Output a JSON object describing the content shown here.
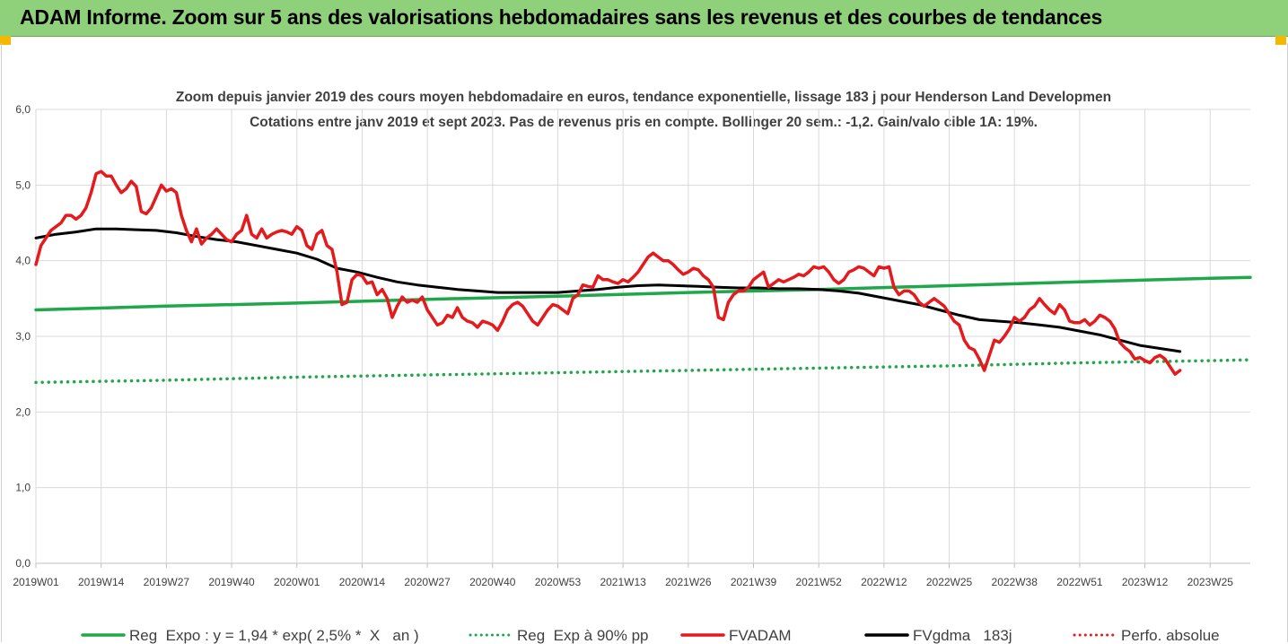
{
  "header": {
    "title": "ADAM Informe. Zoom sur 5 ans des valorisations hebdomadaires sans les revenus et des courbes de tendances"
  },
  "colors": {
    "header_bg": "#8fd07a",
    "green": "#1fa84a",
    "red": "#e41a1c",
    "black": "#000000",
    "title_text": "#404040"
  },
  "chart_data": {
    "type": "line",
    "title": "Zoom depuis janvier 2019 des cours moyen hebdomadaire en euros, tendance exponentielle, lissage 183 j pour Henderson Land Developmen",
    "subtitle": "Cotations entre janv 2019 et sept 2023. Pas de revenus pris en compte. Bollinger 20 sem.: -1,2. Gain/valo cible 1A: 19%.",
    "ylim": [
      0,
      6
    ],
    "y_ticks": [
      "0,0",
      "1,0",
      "2,0",
      "3,0",
      "4,0",
      "5,0",
      "6,0"
    ],
    "x_ticks": [
      "2019W01",
      "2019W14",
      "2019W27",
      "2019W40",
      "2020W01",
      "2020W14",
      "2020W27",
      "2020W40",
      "2020W53",
      "2021W13",
      "2021W26",
      "2021W39",
      "2021W52",
      "2022W12",
      "2022W25",
      "2022W38",
      "2022W51",
      "2023W12",
      "2023W25"
    ],
    "grid": true,
    "legend_position": "bottom",
    "series": [
      {
        "name": "Reg  Expo : y = 1,94 * exp( 2,5% *  X   an )",
        "color": "#1fa84a",
        "style": "solid",
        "values": [
          [
            0,
            3.35
          ],
          [
            26,
            3.4
          ],
          [
            52,
            3.44
          ],
          [
            78,
            3.49
          ],
          [
            104,
            3.53
          ],
          [
            130,
            3.58
          ],
          [
            156,
            3.62
          ],
          [
            182,
            3.67
          ],
          [
            208,
            3.72
          ],
          [
            235,
            3.77
          ],
          [
            242,
            3.78
          ]
        ]
      },
      {
        "name": "Reg  Exp à 90% pp",
        "color": "#1fa84a",
        "style": "dotted",
        "values": [
          [
            0,
            2.39
          ],
          [
            26,
            2.42
          ],
          [
            52,
            2.46
          ],
          [
            78,
            2.49
          ],
          [
            104,
            2.52
          ],
          [
            130,
            2.55
          ],
          [
            156,
            2.58
          ],
          [
            182,
            2.61
          ],
          [
            208,
            2.65
          ],
          [
            235,
            2.68
          ],
          [
            242,
            2.69
          ]
        ]
      },
      {
        "name": "FVADAM",
        "color": "#e41a1c",
        "style": "solid",
        "values": [
          [
            0,
            3.95
          ],
          [
            1,
            4.2
          ],
          [
            2,
            4.3
          ],
          [
            3,
            4.4
          ],
          [
            4,
            4.45
          ],
          [
            5,
            4.5
          ],
          [
            6,
            4.6
          ],
          [
            7,
            4.6
          ],
          [
            8,
            4.55
          ],
          [
            9,
            4.6
          ],
          [
            10,
            4.7
          ],
          [
            11,
            4.9
          ],
          [
            12,
            5.15
          ],
          [
            13,
            5.18
          ],
          [
            14,
            5.12
          ],
          [
            15,
            5.12
          ],
          [
            16,
            5.0
          ],
          [
            17,
            4.9
          ],
          [
            18,
            4.95
          ],
          [
            19,
            5.05
          ],
          [
            20,
            4.98
          ],
          [
            21,
            4.65
          ],
          [
            22,
            4.62
          ],
          [
            23,
            4.7
          ],
          [
            24,
            4.85
          ],
          [
            25,
            5.0
          ],
          [
            26,
            4.92
          ],
          [
            27,
            4.95
          ],
          [
            28,
            4.9
          ],
          [
            29,
            4.6
          ],
          [
            30,
            4.4
          ],
          [
            31,
            4.25
          ],
          [
            32,
            4.42
          ],
          [
            33,
            4.22
          ],
          [
            34,
            4.3
          ],
          [
            35,
            4.35
          ],
          [
            36,
            4.42
          ],
          [
            37,
            4.35
          ],
          [
            38,
            4.28
          ],
          [
            39,
            4.25
          ],
          [
            40,
            4.35
          ],
          [
            41,
            4.4
          ],
          [
            42,
            4.6
          ],
          [
            43,
            4.35
          ],
          [
            44,
            4.3
          ],
          [
            45,
            4.42
          ],
          [
            46,
            4.3
          ],
          [
            47,
            4.35
          ],
          [
            48,
            4.38
          ],
          [
            49,
            4.4
          ],
          [
            50,
            4.38
          ],
          [
            51,
            4.35
          ],
          [
            52,
            4.45
          ],
          [
            53,
            4.4
          ],
          [
            54,
            4.2
          ],
          [
            55,
            4.15
          ],
          [
            56,
            4.35
          ],
          [
            57,
            4.4
          ],
          [
            58,
            4.2
          ],
          [
            59,
            4.15
          ],
          [
            60,
            3.85
          ],
          [
            61,
            3.42
          ],
          [
            62,
            3.45
          ],
          [
            63,
            3.75
          ],
          [
            64,
            3.82
          ],
          [
            65,
            3.8
          ],
          [
            66,
            3.7
          ],
          [
            67,
            3.72
          ],
          [
            68,
            3.55
          ],
          [
            69,
            3.62
          ],
          [
            70,
            3.5
          ],
          [
            71,
            3.25
          ],
          [
            72,
            3.4
          ],
          [
            73,
            3.52
          ],
          [
            74,
            3.45
          ],
          [
            75,
            3.48
          ],
          [
            76,
            3.45
          ],
          [
            77,
            3.52
          ],
          [
            78,
            3.35
          ],
          [
            79,
            3.25
          ],
          [
            80,
            3.15
          ],
          [
            81,
            3.18
          ],
          [
            82,
            3.28
          ],
          [
            83,
            3.25
          ],
          [
            84,
            3.38
          ],
          [
            85,
            3.25
          ],
          [
            86,
            3.2
          ],
          [
            87,
            3.18
          ],
          [
            88,
            3.12
          ],
          [
            89,
            3.2
          ],
          [
            90,
            3.18
          ],
          [
            91,
            3.15
          ],
          [
            92,
            3.08
          ],
          [
            93,
            3.2
          ],
          [
            94,
            3.35
          ],
          [
            95,
            3.42
          ],
          [
            96,
            3.45
          ],
          [
            97,
            3.4
          ],
          [
            98,
            3.3
          ],
          [
            99,
            3.2
          ],
          [
            100,
            3.15
          ],
          [
            101,
            3.25
          ],
          [
            102,
            3.35
          ],
          [
            103,
            3.42
          ],
          [
            104,
            3.4
          ],
          [
            105,
            3.35
          ],
          [
            106,
            3.3
          ],
          [
            107,
            3.5
          ],
          [
            108,
            3.55
          ],
          [
            109,
            3.68
          ],
          [
            110,
            3.66
          ],
          [
            111,
            3.65
          ],
          [
            112,
            3.8
          ],
          [
            113,
            3.75
          ],
          [
            114,
            3.75
          ],
          [
            115,
            3.72
          ],
          [
            116,
            3.7
          ],
          [
            117,
            3.75
          ],
          [
            118,
            3.72
          ],
          [
            119,
            3.78
          ],
          [
            120,
            3.85
          ],
          [
            121,
            3.95
          ],
          [
            122,
            4.05
          ],
          [
            123,
            4.1
          ],
          [
            124,
            4.05
          ],
          [
            125,
            4.0
          ],
          [
            126,
            4.0
          ],
          [
            127,
            3.95
          ],
          [
            128,
            3.88
          ],
          [
            129,
            3.82
          ],
          [
            130,
            3.85
          ],
          [
            131,
            3.9
          ],
          [
            132,
            3.88
          ],
          [
            133,
            3.8
          ],
          [
            134,
            3.75
          ],
          [
            135,
            3.65
          ],
          [
            136,
            3.25
          ],
          [
            137,
            3.22
          ],
          [
            138,
            3.45
          ],
          [
            139,
            3.55
          ],
          [
            140,
            3.6
          ],
          [
            141,
            3.6
          ],
          [
            142,
            3.65
          ],
          [
            143,
            3.75
          ],
          [
            144,
            3.8
          ],
          [
            145,
            3.85
          ],
          [
            146,
            3.65
          ],
          [
            147,
            3.7
          ],
          [
            148,
            3.75
          ],
          [
            149,
            3.72
          ],
          [
            150,
            3.75
          ],
          [
            151,
            3.78
          ],
          [
            152,
            3.82
          ],
          [
            153,
            3.8
          ],
          [
            154,
            3.85
          ],
          [
            155,
            3.92
          ],
          [
            156,
            3.9
          ],
          [
            157,
            3.92
          ],
          [
            158,
            3.85
          ],
          [
            159,
            3.75
          ],
          [
            160,
            3.7
          ],
          [
            161,
            3.75
          ],
          [
            162,
            3.85
          ],
          [
            163,
            3.88
          ],
          [
            164,
            3.92
          ],
          [
            165,
            3.9
          ],
          [
            166,
            3.85
          ],
          [
            167,
            3.8
          ],
          [
            168,
            3.92
          ],
          [
            169,
            3.9
          ],
          [
            170,
            3.92
          ],
          [
            171,
            3.65
          ],
          [
            172,
            3.55
          ],
          [
            173,
            3.6
          ],
          [
            174,
            3.6
          ],
          [
            175,
            3.55
          ],
          [
            176,
            3.45
          ],
          [
            177,
            3.4
          ],
          [
            178,
            3.45
          ],
          [
            179,
            3.5
          ],
          [
            180,
            3.45
          ],
          [
            181,
            3.4
          ],
          [
            182,
            3.3
          ],
          [
            183,
            3.2
          ],
          [
            184,
            3.15
          ],
          [
            185,
            2.95
          ],
          [
            186,
            2.85
          ],
          [
            187,
            2.82
          ],
          [
            188,
            2.7
          ],
          [
            189,
            2.55
          ],
          [
            190,
            2.75
          ],
          [
            191,
            2.95
          ],
          [
            192,
            2.92
          ],
          [
            193,
            3.0
          ],
          [
            194,
            3.1
          ],
          [
            195,
            3.25
          ],
          [
            196,
            3.2
          ],
          [
            197,
            3.25
          ],
          [
            198,
            3.35
          ],
          [
            199,
            3.4
          ],
          [
            200,
            3.5
          ],
          [
            201,
            3.42
          ],
          [
            202,
            3.35
          ],
          [
            203,
            3.3
          ],
          [
            204,
            3.42
          ],
          [
            205,
            3.35
          ],
          [
            206,
            3.2
          ],
          [
            207,
            3.18
          ],
          [
            208,
            3.18
          ],
          [
            209,
            3.22
          ],
          [
            210,
            3.15
          ],
          [
            211,
            3.2
          ],
          [
            212,
            3.28
          ],
          [
            213,
            3.25
          ],
          [
            214,
            3.2
          ],
          [
            215,
            3.1
          ],
          [
            216,
            2.92
          ],
          [
            217,
            2.85
          ],
          [
            218,
            2.8
          ],
          [
            219,
            2.7
          ],
          [
            220,
            2.72
          ],
          [
            221,
            2.68
          ],
          [
            222,
            2.65
          ],
          [
            223,
            2.72
          ],
          [
            224,
            2.75
          ],
          [
            225,
            2.7
          ],
          [
            226,
            2.6
          ],
          [
            227,
            2.5
          ],
          [
            228,
            2.55
          ]
        ]
      },
      {
        "name": "FVgdma   183j",
        "color": "#000000",
        "style": "solid",
        "values": [
          [
            0,
            4.3
          ],
          [
            4,
            4.35
          ],
          [
            8,
            4.38
          ],
          [
            12,
            4.42
          ],
          [
            16,
            4.42
          ],
          [
            20,
            4.41
          ],
          [
            24,
            4.4
          ],
          [
            28,
            4.37
          ],
          [
            32,
            4.32
          ],
          [
            36,
            4.28
          ],
          [
            40,
            4.25
          ],
          [
            44,
            4.2
          ],
          [
            48,
            4.15
          ],
          [
            52,
            4.1
          ],
          [
            56,
            4.02
          ],
          [
            60,
            3.9
          ],
          [
            64,
            3.85
          ],
          [
            68,
            3.78
          ],
          [
            72,
            3.72
          ],
          [
            76,
            3.68
          ],
          [
            80,
            3.65
          ],
          [
            84,
            3.62
          ],
          [
            88,
            3.6
          ],
          [
            92,
            3.58
          ],
          [
            96,
            3.58
          ],
          [
            100,
            3.58
          ],
          [
            104,
            3.58
          ],
          [
            108,
            3.6
          ],
          [
            112,
            3.62
          ],
          [
            116,
            3.65
          ],
          [
            120,
            3.67
          ],
          [
            124,
            3.68
          ],
          [
            128,
            3.67
          ],
          [
            132,
            3.66
          ],
          [
            136,
            3.65
          ],
          [
            140,
            3.64
          ],
          [
            144,
            3.64
          ],
          [
            148,
            3.63
          ],
          [
            152,
            3.63
          ],
          [
            156,
            3.62
          ],
          [
            160,
            3.6
          ],
          [
            164,
            3.57
          ],
          [
            168,
            3.52
          ],
          [
            172,
            3.47
          ],
          [
            176,
            3.42
          ],
          [
            180,
            3.35
          ],
          [
            184,
            3.28
          ],
          [
            188,
            3.22
          ],
          [
            192,
            3.2
          ],
          [
            196,
            3.18
          ],
          [
            200,
            3.15
          ],
          [
            204,
            3.12
          ],
          [
            208,
            3.07
          ],
          [
            212,
            3.02
          ],
          [
            216,
            2.95
          ],
          [
            220,
            2.88
          ],
          [
            224,
            2.84
          ],
          [
            228,
            2.8
          ]
        ]
      },
      {
        "name": "Perfo. absolue",
        "color": "#e41a1c",
        "style": "dotted",
        "values": []
      }
    ]
  }
}
